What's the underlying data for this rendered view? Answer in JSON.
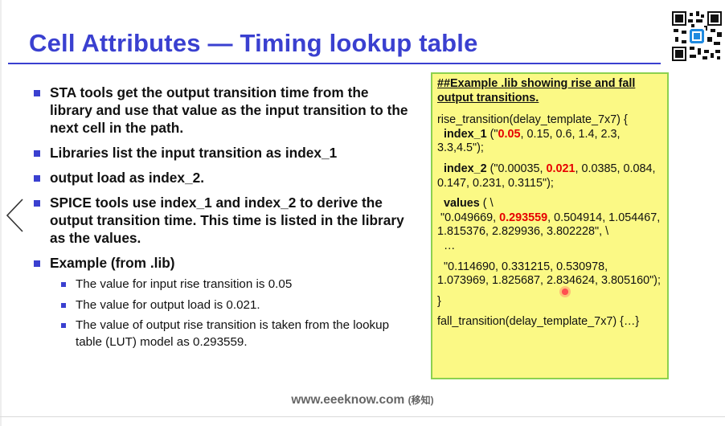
{
  "slide": {
    "title": "Cell Attributes — Timing lookup table",
    "footer_site": "www.eeeknow.com",
    "footer_cn": "(移知)"
  },
  "bullets": [
    "STA tools get the output transition time from the library and use that value as the input transition to the next cell in the path.",
    "Libraries list the input transition as index_1",
    "output load as index_2.",
    "SPICE tools use index_1 and index_2 to derive the output transition time. This time is listed in the library as the values.",
    "Example (from .lib)"
  ],
  "sub_bullets": [
    "The value for input rise transition is 0.05",
    "The value for output load is 0.021.",
    "The value of output rise transition is taken from the lookup table (LUT) model as 0.293559."
  ],
  "code_box": {
    "heading": "##Example .lib showing rise and fall output transitions.",
    "l1": "rise_transition(delay_template_7x7) {",
    "idx1_key": "index_1",
    "idx1_open": " (\"",
    "idx1_hl": "0.05",
    "idx1_rest": ", 0.15, 0.6, 1.4, 2.3, 3.3,4.5\");",
    "idx2_key": "index_2",
    "idx2_open": " (\"0.00035, ",
    "idx2_hl": "0.021",
    "idx2_rest": ", 0.0385, 0.084, 0.147, 0.231, 0.3115\");",
    "values_key": "values",
    "values_open": " ( \\",
    "row1_a": "\"0.049669, ",
    "row1_hl": "0.293559",
    "row1_rest": ", 0.504914, 1.054467, 1.815376, 2.829936, 3.802228\", \\",
    "ellipsis": "…",
    "row2": "\"0.114690, 0.331215, 0.530978, 1.073969, 1.825687, 2.834624, 3.805160\");",
    "close": "}",
    "fall": "fall_transition(delay_template_7x7) {…}"
  },
  "colors": {
    "accent": "#3a40d0",
    "box_fill": "#fbf985",
    "box_border": "#8cd14f",
    "highlight": "#e60000"
  },
  "icons": [
    "qr-code-icon",
    "chevron-left-icon"
  ]
}
